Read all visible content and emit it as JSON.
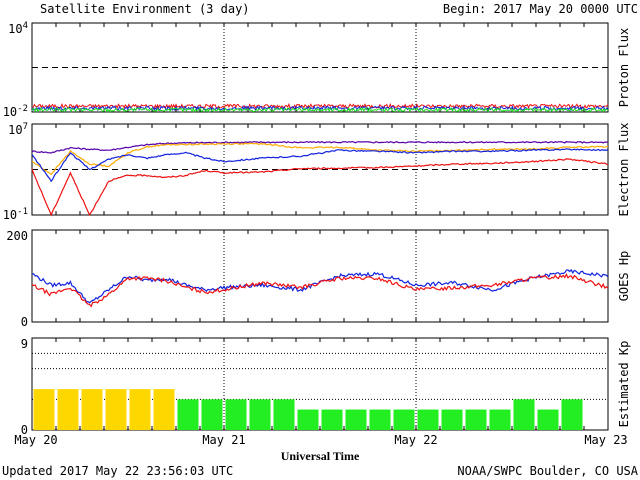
{
  "header": {
    "title": "Satellite Environment (3 day)",
    "begin": "Begin:  2017 May 20 0000 UTC"
  },
  "footer": {
    "updated": "Updated 2017 May 22 23:56:03 UTC",
    "source": "NOAA/SWPC Boulder, CO USA",
    "xlabel": "Universal Time"
  },
  "x_ticks": [
    "May 20",
    "May 21",
    "May 22",
    "May 23"
  ],
  "colors": {
    "red": "#ee1111",
    "blue": "#1122dd",
    "green": "#22dd22",
    "orange": "#ffaa00",
    "purple": "#5500aa",
    "kp_yellow": "#ffd700",
    "kp_green": "#22ee22"
  },
  "chart_data": [
    {
      "type": "line",
      "name": "proton-flux",
      "ylabel": "Proton Flux",
      "yscale": "log",
      "ylim": [
        0.01,
        10000
      ],
      "ytick_labels": [
        "10^4",
        "10^-2"
      ],
      "threshold": 10,
      "series": [
        {
          "color": "red",
          "level": 0.025
        },
        {
          "color": "blue",
          "level": 0.018
        },
        {
          "color": "green",
          "level": 0.014
        }
      ]
    },
    {
      "type": "line",
      "name": "electron-flux",
      "ylabel": "Electron Flux",
      "yscale": "log",
      "ylim": [
        0.1,
        10000000
      ],
      "ytick_labels": [
        "10^7",
        "10^-1"
      ],
      "threshold": 1000,
      "x_days": [
        0,
        0.1,
        0.2,
        0.3,
        0.4,
        0.5,
        0.6,
        0.7,
        0.8,
        0.9,
        1.0,
        1.2,
        1.4,
        1.6,
        1.8,
        2.0,
        2.2,
        2.4,
        2.6,
        2.8,
        3.0
      ],
      "series": [
        {
          "color": "purple",
          "values": [
            40000,
            30000,
            80000,
            60000,
            50000,
            90000,
            150000,
            200000,
            220000,
            230000,
            240000,
            250000,
            250000,
            250000,
            250000,
            250000,
            250000,
            250000,
            250000,
            250000,
            240000
          ]
        },
        {
          "color": "orange",
          "values": [
            5000,
            400,
            40000,
            3000,
            2000,
            30000,
            100000,
            150000,
            160000,
            170000,
            180000,
            180000,
            80000,
            90000,
            50000,
            40000,
            50000,
            60000,
            60000,
            90000,
            100000
          ]
        },
        {
          "color": "blue",
          "values": [
            20000,
            100,
            30000,
            1000,
            8000,
            20000,
            10000,
            20000,
            30000,
            10000,
            5000,
            10000,
            15000,
            50000,
            40000,
            30000,
            40000,
            40000,
            50000,
            60000,
            50000
          ]
        },
        {
          "color": "red",
          "values": [
            1000,
            0.1,
            500,
            0.1,
            100,
            300,
            300,
            200,
            300,
            800,
            500,
            600,
            1200,
            1300,
            1500,
            2000,
            3000,
            3500,
            5000,
            8000,
            3000
          ]
        }
      ]
    },
    {
      "type": "line",
      "name": "goes-hp",
      "ylabel": "GOES Hp",
      "ylim": [
        0,
        200
      ],
      "ytick_labels": [
        "200",
        "0"
      ],
      "x_days": [
        0,
        0.1,
        0.2,
        0.3,
        0.4,
        0.5,
        0.6,
        0.7,
        0.8,
        0.9,
        1.0,
        1.2,
        1.4,
        1.6,
        1.8,
        2.0,
        2.2,
        2.4,
        2.6,
        2.8,
        3.0
      ],
      "series": [
        {
          "color": "blue",
          "values": [
            105,
            80,
            85,
            40,
            70,
            100,
            90,
            95,
            80,
            70,
            75,
            80,
            70,
            100,
            105,
            80,
            85,
            70,
            95,
            110,
            100
          ]
        },
        {
          "color": "red",
          "values": [
            80,
            60,
            75,
            35,
            60,
            95,
            95,
            90,
            75,
            65,
            70,
            85,
            75,
            95,
            95,
            70,
            75,
            80,
            95,
            100,
            75
          ]
        }
      ]
    },
    {
      "type": "bar",
      "name": "estimated-kp",
      "ylabel": "Estimated Kp",
      "ylim": [
        0,
        9
      ],
      "ytick_labels": [
        "9",
        "0"
      ],
      "values": [
        4,
        4,
        4,
        4,
        4,
        4,
        3,
        3,
        3,
        3,
        3,
        2,
        2,
        2,
        2,
        2,
        2,
        2,
        2,
        2,
        3,
        2,
        3
      ],
      "bar_colors": [
        "yellow",
        "yellow",
        "yellow",
        "yellow",
        "yellow",
        "yellow",
        "green",
        "green",
        "green",
        "green",
        "green",
        "green",
        "green",
        "green",
        "green",
        "green",
        "green",
        "green",
        "green",
        "green",
        "green",
        "green",
        "green"
      ]
    }
  ]
}
